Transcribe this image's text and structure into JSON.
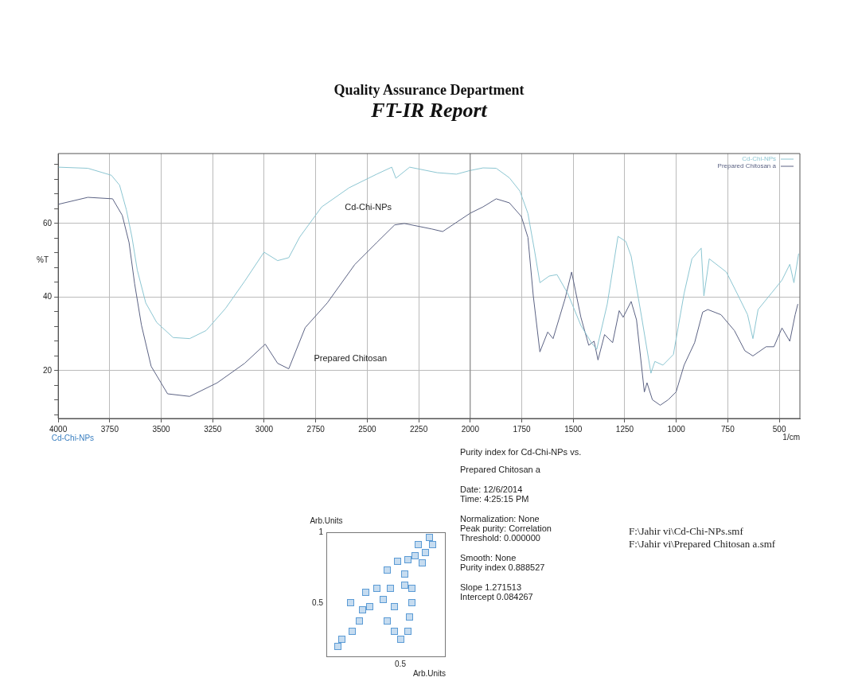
{
  "chart_data": [
    {
      "type": "line",
      "title": "Quality Assurance Department",
      "subtitle": "FT-IR Report",
      "xlabel": "1/cm",
      "ylabel": "%T",
      "xlim": [
        4000,
        400
      ],
      "xticks": [
        4000,
        3750,
        3500,
        3250,
        3000,
        2750,
        2500,
        2250,
        2000,
        1750,
        1500,
        1250,
        1000,
        750,
        500
      ],
      "ylim": [
        7,
        79
      ],
      "yticks": [
        {
          "value": 8,
          "label": null
        },
        {
          "value": 12,
          "label": null
        },
        {
          "value": 16,
          "label": null
        },
        20,
        {
          "value": 24,
          "label": null
        },
        {
          "value": 28,
          "label": null
        },
        {
          "value": 32,
          "label": null
        },
        {
          "value": 36,
          "label": null
        },
        40,
        {
          "value": 44,
          "label": null
        },
        {
          "value": 48,
          "label": null
        },
        {
          "value": 52,
          "label": null
        },
        {
          "value": 56,
          "label": null
        },
        60,
        {
          "value": 64,
          "label": null
        },
        {
          "value": 68,
          "label": null
        },
        {
          "value": 72,
          "label": null
        },
        {
          "value": 76,
          "label": null
        }
      ],
      "grid": true,
      "legend": "top right",
      "marker": "none",
      "line_style": "solid",
      "ref_lines": [
        {
          "axis": "x",
          "value": 2000,
          "color": "#808080"
        }
      ],
      "annotations": [
        "Cd-Chi-NPs",
        "Prepared Chitosan",
        "Cd-Chi-NPs"
      ],
      "series": [
        {
          "name": "Cd-Chi-NPs",
          "color": "#8cc6d2",
          "x": [
            4000,
            3856,
            3742,
            3702,
            3669,
            3642,
            3616,
            3575,
            3522,
            3442,
            3362,
            3282,
            3188,
            3095,
            3001,
            2935,
            2881,
            2828,
            2721,
            2588,
            2454,
            2381,
            2361,
            2294,
            2160,
            2067,
            2000,
            1938,
            1874,
            1810,
            1759,
            1720,
            1688,
            1662,
            1617,
            1579,
            1527,
            1463,
            1412,
            1386,
            1335,
            1283,
            1245,
            1219,
            1168,
            1123,
            1104,
            1065,
            1014,
            962,
            924,
            879,
            866,
            840,
            757,
            705,
            654,
            628,
            603,
            539,
            487,
            449,
            429,
            406
          ],
          "values": [
            75.3,
            75.0,
            73.1,
            70.4,
            63.7,
            56.3,
            47.3,
            38.4,
            33.1,
            29.0,
            28.7,
            30.9,
            36.9,
            44.3,
            52.2,
            49.9,
            50.7,
            56.3,
            64.5,
            69.7,
            73.4,
            75.3,
            72.3,
            75.3,
            73.8,
            73.4,
            74.4,
            75.1,
            75.0,
            72.4,
            68.8,
            62.7,
            52.6,
            43.9,
            45.7,
            46.1,
            41.0,
            32.3,
            27.6,
            25.8,
            38.1,
            56.5,
            55.1,
            51.1,
            34.5,
            19.3,
            22.5,
            21.5,
            24.4,
            41.0,
            50.4,
            53.3,
            40.3,
            50.4,
            46.8,
            41.0,
            35.2,
            28.7,
            36.6,
            41.0,
            44.6,
            48.9,
            43.9,
            51.8
          ]
        },
        {
          "name": "Prepared Chitosan a",
          "color": "#5c6384",
          "x": [
            4000,
            3856,
            3736,
            3689,
            3656,
            3629,
            3596,
            3549,
            3469,
            3362,
            3228,
            3095,
            2995,
            2935,
            2881,
            2801,
            2694,
            2561,
            2454,
            2367,
            2320,
            2187,
            2134,
            2000,
            1938,
            1874,
            1810,
            1752,
            1720,
            1694,
            1662,
            1624,
            1598,
            1540,
            1508,
            1463,
            1425,
            1399,
            1380,
            1348,
            1309,
            1277,
            1258,
            1219,
            1193,
            1155,
            1142,
            1116,
            1078,
            1039,
            1001,
            962,
            911,
            872,
            847,
            783,
            718,
            667,
            628,
            564,
            526,
            487,
            449,
            423,
            410
          ],
          "values": [
            65.2,
            67.1,
            66.7,
            62.2,
            54.8,
            43.6,
            32.4,
            21.2,
            13.7,
            13.0,
            16.7,
            22.0,
            27.2,
            22.0,
            20.5,
            31.7,
            38.4,
            48.8,
            54.8,
            59.6,
            60.0,
            58.5,
            57.8,
            62.8,
            64.5,
            66.7,
            65.6,
            61.9,
            56.2,
            40.3,
            25.1,
            30.5,
            28.7,
            39.5,
            46.8,
            34.5,
            26.9,
            28.0,
            22.9,
            29.8,
            27.6,
            36.3,
            34.5,
            38.8,
            33.8,
            14.2,
            16.7,
            12.1,
            10.6,
            12.1,
            14.2,
            21.5,
            27.6,
            35.9,
            36.6,
            35.2,
            30.9,
            25.4,
            24.0,
            26.5,
            26.5,
            31.6,
            28.0,
            35.2,
            38.1
          ]
        }
      ]
    },
    {
      "type": "other",
      "xlabel": "Arb.Units",
      "ylabel": "Arb.Units",
      "annotations": [
        "Purity index for Cd-Chi-NPs vs.",
        "Prepared Chitosan a",
        "Date: 12/6/2014",
        "Time: 4:25:15 PM",
        "Normalization: None",
        "Peak purity: Correlation",
        "Threshold: 0.000000",
        "Smooth: None",
        "Purity index 0.888527",
        "Slope 1.271513",
        "Intercept 0.084267",
        "F:\\Jahir vi\\Cd-Chi-NPs.smf",
        "F:\\Jahir vi\\Prepared Chitosan a.smf",
        "1",
        "0.5",
        "0.5"
      ]
    }
  ]
}
